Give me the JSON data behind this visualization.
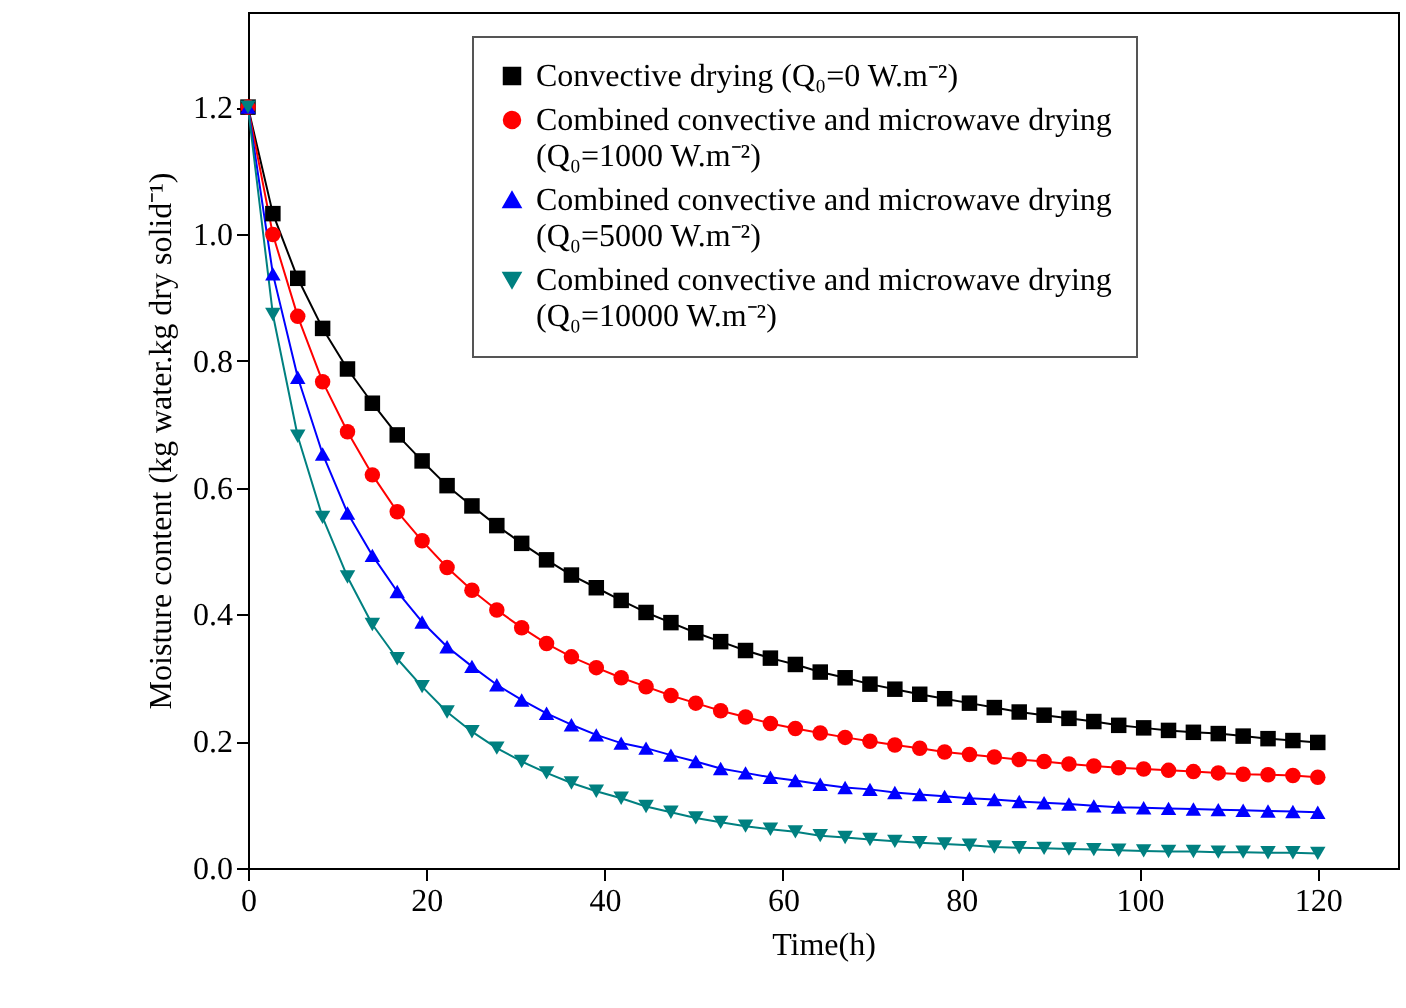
{
  "chart_data": {
    "type": "line",
    "xlabel": "Time(h)",
    "ylabel": "Moisture content (kg water.kg dry solid⁻¹)",
    "x": [
      0,
      2.79,
      5.58,
      8.37,
      11.16,
      13.95,
      16.74,
      19.53,
      22.33,
      25.12,
      27.91,
      30.7,
      33.49,
      36.28,
      39.07,
      41.86,
      44.65,
      47.44,
      50.23,
      53.02,
      55.81,
      58.6,
      61.4,
      64.19,
      66.98,
      69.77,
      72.56,
      75.35,
      78.14,
      80.93,
      83.72,
      86.51,
      89.3,
      92.09,
      94.88,
      97.67,
      100.47,
      103.26,
      106.05,
      108.84,
      111.63,
      114.42,
      117.21,
      120
    ],
    "series": [
      {
        "name": "Convective drying (Q₀=0 W.m⁻²)",
        "color": "#000000",
        "marker": "square",
        "values": [
          1.2,
          1.032,
          0.93,
          0.851,
          0.787,
          0.733,
          0.683,
          0.642,
          0.603,
          0.571,
          0.54,
          0.512,
          0.486,
          0.462,
          0.442,
          0.422,
          0.403,
          0.387,
          0.371,
          0.357,
          0.343,
          0.331,
          0.321,
          0.309,
          0.3,
          0.29,
          0.282,
          0.274,
          0.267,
          0.26,
          0.253,
          0.246,
          0.241,
          0.236,
          0.231,
          0.225,
          0.221,
          0.217,
          0.214,
          0.212,
          0.208,
          0.204,
          0.201,
          0.198
        ]
      },
      {
        "name": "Combined convective and microwave drying (Q₀=1000 W.m⁻²)",
        "color": "#ff0000",
        "marker": "circle",
        "values": [
          1.2,
          0.999,
          0.87,
          0.767,
          0.688,
          0.62,
          0.562,
          0.516,
          0.474,
          0.438,
          0.407,
          0.379,
          0.354,
          0.333,
          0.316,
          0.3,
          0.286,
          0.272,
          0.26,
          0.248,
          0.238,
          0.228,
          0.22,
          0.213,
          0.206,
          0.2,
          0.194,
          0.189,
          0.183,
          0.179,
          0.175,
          0.171,
          0.168,
          0.164,
          0.161,
          0.158,
          0.156,
          0.154,
          0.152,
          0.15,
          0.148,
          0.147,
          0.146,
          0.143
        ]
      },
      {
        "name": "Combined convective and microwave drying (Q₀=5000 W.m⁻²)",
        "color": "#0000ff",
        "marker": "triangle",
        "values": [
          1.2,
          0.937,
          0.774,
          0.653,
          0.56,
          0.493,
          0.436,
          0.388,
          0.349,
          0.318,
          0.289,
          0.265,
          0.244,
          0.226,
          0.21,
          0.197,
          0.189,
          0.178,
          0.168,
          0.157,
          0.15,
          0.143,
          0.138,
          0.132,
          0.127,
          0.124,
          0.119,
          0.116,
          0.113,
          0.11,
          0.108,
          0.105,
          0.103,
          0.101,
          0.098,
          0.096,
          0.095,
          0.094,
          0.093,
          0.092,
          0.091,
          0.09,
          0.089,
          0.088
        ]
      },
      {
        "name": "Combined convective and microwave drying (Q₀=10000 W.m⁻²)",
        "color": "#008080",
        "marker": "triangle-down",
        "values": [
          1.2,
          0.873,
          0.681,
          0.553,
          0.459,
          0.384,
          0.33,
          0.286,
          0.246,
          0.215,
          0.189,
          0.168,
          0.15,
          0.134,
          0.121,
          0.11,
          0.097,
          0.088,
          0.079,
          0.072,
          0.066,
          0.061,
          0.057,
          0.051,
          0.048,
          0.045,
          0.042,
          0.04,
          0.038,
          0.036,
          0.033,
          0.032,
          0.031,
          0.03,
          0.029,
          0.028,
          0.027,
          0.026,
          0.026,
          0.025,
          0.025,
          0.024,
          0.024,
          0.023
        ]
      }
    ],
    "xlim": [
      0,
      129
    ],
    "xticks": [
      0,
      20,
      40,
      60,
      80,
      100,
      120
    ],
    "ylim": [
      0,
      1.35
    ],
    "yticks": [
      {
        "value": 0,
        "label": "0.0"
      },
      {
        "value": 0.2,
        "label": "0.2"
      },
      {
        "value": 0.4,
        "label": "0.4"
      },
      {
        "value": 0.6,
        "label": "0.6"
      },
      {
        "value": 0.8,
        "label": "0.8"
      },
      {
        "value": 1,
        "label": "1.0"
      },
      {
        "value": 1.2,
        "label": "1.2"
      }
    ],
    "legend": "top right",
    "grid": false
  }
}
